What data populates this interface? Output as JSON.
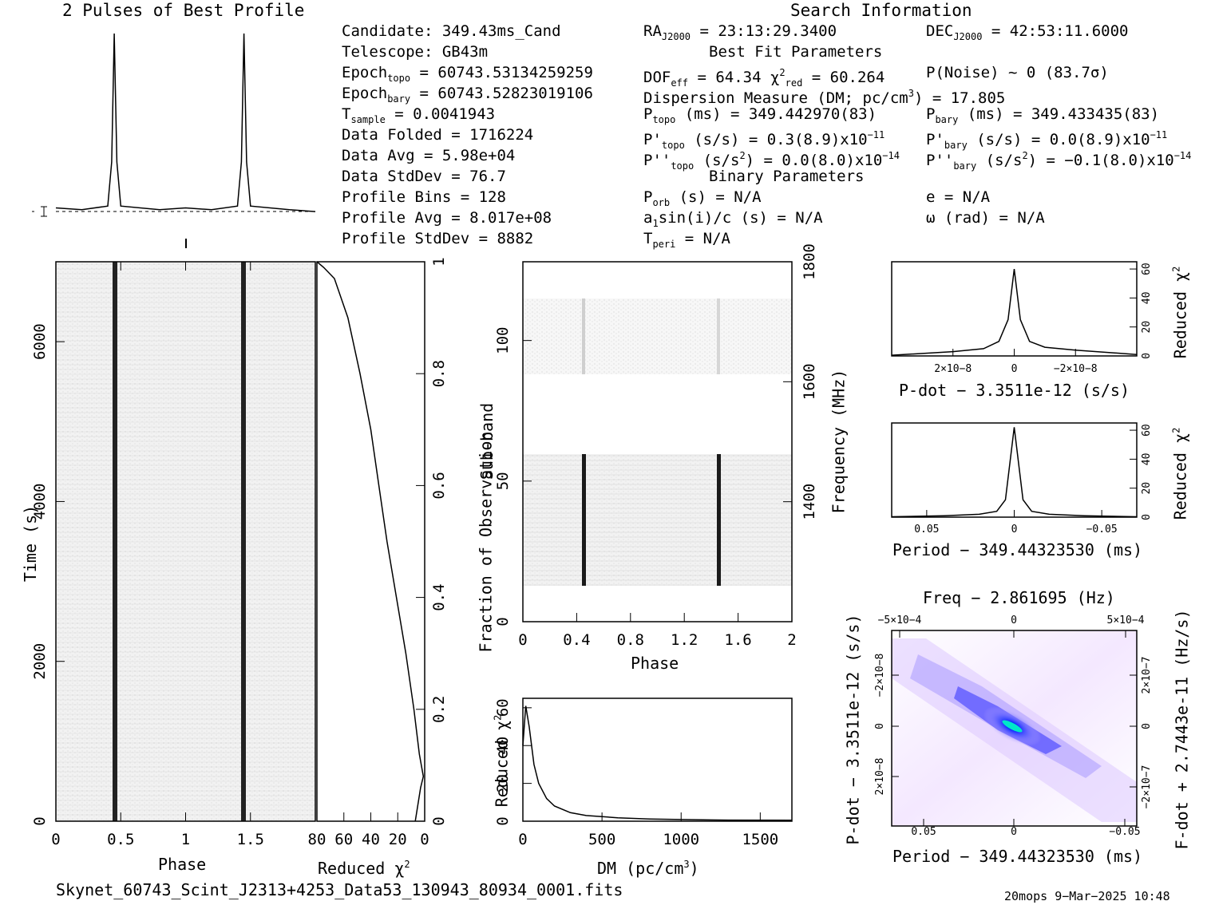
{
  "header": {
    "profile_title": "2 Pulses of Best Profile",
    "search_title": "Search Information",
    "best_fit_title": "Best Fit Parameters",
    "binary_title": "Binary Parameters"
  },
  "info": {
    "candidate": "Candidate:  349.43ms_Cand",
    "telescope": "Telescope:  GB43m",
    "epoch_topo": "Epoch",
    "epoch_topo_sub": "topo",
    "epoch_topo_val": " = 60743.53134259259",
    "epoch_bary": "Epoch",
    "epoch_bary_sub": "bary",
    "epoch_bary_val": " = 60743.52823019106",
    "tsample": "T",
    "tsample_sub": "sample",
    "tsample_val": "     =  0.0041943",
    "data_folded": "Data Folded    =  1716224",
    "data_avg": "Data Avg       =  5.98e+04",
    "data_std": "Data StdDev    =  76.7",
    "profile_bins": "Profile Bins   =  128",
    "profile_avg": "Profile Avg    =  8.017e+08",
    "profile_std": "Profile StdDev =  8882"
  },
  "search": {
    "ra": "RA",
    "ra_sub": "J2000",
    "ra_val": " = 23:13:29.3400",
    "dec": "DEC",
    "dec_sub": "J2000",
    "dec_val": " = 42:53:11.6000",
    "dof": "DOF",
    "dof_sub": "eff",
    "dof_val": " = 64.34  χ",
    "chi_sup": "2",
    "chi_sub": "red",
    "chi_val": " = 60.264",
    "pnoise": "P(Noise) ~ 0   (83.7σ)",
    "dm": "Dispersion Measure (DM; pc/cm",
    "dm_sup": "3",
    "dm_val": ") = 17.805",
    "ptopo": "P",
    "ptopo_sub": "topo",
    "ptopo_val": " (ms) =  349.442970(83)",
    "pbary": "P",
    "pbary_sub": "bary",
    "pbary_val": " (ms) =  349.433435(83)",
    "pdtopo": "P'",
    "pdtopo_sub": "topo",
    "pdtopo_val": " (s/s) =  0.3(8.9)x10",
    "pdtopo_exp": "−11",
    "pdbary": "P'",
    "pdbary_sub": "bary",
    "pdbary_val": " (s/s) = 0.0(8.9)x10",
    "pdbary_exp": "−11",
    "pddtopo": "P''",
    "pddtopo_sub": "topo",
    "pddtopo_val": " (s/s",
    "pddtopo_sup": "2",
    "pddtopo_val2": ") = 0.0(8.0)x10",
    "pddtopo_exp": "−14",
    "pddbary": "P''",
    "pddbary_sub": "bary",
    "pddbary_val": " (s/s",
    "pddbary_sup": "2",
    "pddbary_val2": ") = −0.1(8.0)x10",
    "pddbary_exp": "−14",
    "porb": "P",
    "porb_sub": "orb",
    "porb_val": " (s) = N/A",
    "ecc": "e = N/A",
    "a1": "a",
    "a1_sub": "1",
    "a1_val": "sin(i)/c (s) = N/A",
    "omega": "ω (rad) = N/A",
    "tperi": "T",
    "tperi_sub": "peri",
    "tperi_val": " = N/A"
  },
  "footer": {
    "filename": "Skynet_60743_Scint_J2313+4253_Data53_130943_80934_0001.fits",
    "stamp": "20mops  9−Mar−2025 10:48"
  },
  "chart_data": [
    {
      "type": "line",
      "title": "2 Pulses of Best Profile",
      "x": [
        0.0,
        0.2,
        0.4,
        0.43,
        0.45,
        0.47,
        0.5,
        0.8,
        1.0,
        1.2,
        1.4,
        1.43,
        1.45,
        1.47,
        1.5,
        1.8,
        2.0
      ],
      "y": [
        0.05,
        0.04,
        0.06,
        0.3,
        1.0,
        0.3,
        0.06,
        0.04,
        0.05,
        0.04,
        0.06,
        0.3,
        1.0,
        0.3,
        0.06,
        0.04,
        0.03
      ],
      "xlim": [
        0,
        2
      ]
    },
    {
      "type": "heatmap",
      "xlabel": "Phase",
      "ylabel": "Time (s)",
      "xlim": [
        0,
        2
      ],
      "ylim": [
        0,
        7000
      ],
      "x_ticks": [
        "0",
        "0.5",
        "1",
        "1.5"
      ],
      "y_ticks": [
        "0",
        "2000",
        "4000",
        "6000"
      ],
      "pulse_phases": [
        0.45,
        1.45
      ]
    },
    {
      "type": "line",
      "xlabel": "Reduced χ2",
      "ylabel": "Fraction of Observation",
      "x_ticks": [
        "80",
        "60",
        "40",
        "20",
        "0"
      ],
      "y_ticks": [
        "0",
        "0.2",
        "0.4",
        "0.6",
        "0.8",
        "1"
      ],
      "xlim": [
        80,
        0
      ],
      "ylim": [
        0,
        1
      ],
      "x": [
        80,
        75,
        67,
        57,
        48,
        40,
        34,
        28,
        21,
        14,
        8,
        4,
        1,
        3,
        7
      ],
      "y": [
        1.0,
        0.99,
        0.97,
        0.9,
        0.8,
        0.7,
        0.6,
        0.5,
        0.4,
        0.3,
        0.2,
        0.12,
        0.08,
        0.06,
        0.0
      ]
    },
    {
      "type": "heatmap",
      "xlabel": "Phase",
      "ylabel": "Sub-band",
      "y2label": "Frequency (MHz)",
      "xlim": [
        0,
        2
      ],
      "ylim": [
        0,
        128
      ],
      "x_ticks": [
        "0",
        "0.4",
        "0.8",
        "1.2",
        "1.6",
        "2"
      ],
      "y_ticks": [
        "0",
        "50",
        "100"
      ],
      "y2_ticks": [
        "1400",
        "1600",
        "1800"
      ],
      "pulse_phases": [
        0.45,
        1.45
      ],
      "data_bands": [
        [
          13,
          60
        ],
        [
          89,
          116
        ]
      ]
    },
    {
      "type": "line",
      "xlabel": "DM (pc/cm3)",
      "ylabel": "Reduced χ2",
      "xlim": [
        0,
        1700
      ],
      "ylim": [
        0,
        65
      ],
      "x_ticks": [
        "0",
        "500",
        "1000",
        "1500"
      ],
      "y_ticks": [
        "0",
        "20",
        "40",
        "60"
      ],
      "x": [
        0,
        18,
        40,
        70,
        100,
        150,
        200,
        300,
        400,
        600,
        800,
        1000,
        1300,
        1700
      ],
      "y": [
        40,
        61,
        50,
        30,
        20,
        12,
        8,
        4.5,
        3,
        1.8,
        1.2,
        0.9,
        0.6,
        0.5
      ]
    },
    {
      "type": "line",
      "xlabel": "P-dot − 3.3511e-12 (s/s)",
      "ylabel": "Reduced χ2",
      "xlim": [
        4e-08,
        -4e-08
      ],
      "ylim": [
        0,
        65
      ],
      "x_ticks": [
        "2×10−8",
        "0",
        "−2×10−8"
      ],
      "y_ticks": [
        "0",
        "20",
        "40",
        "60"
      ],
      "x": [
        4e-08,
        2e-08,
        1e-08,
        5e-09,
        2e-09,
        0,
        -2e-09,
        -5e-09,
        -1e-08,
        -2e-08,
        -4e-08
      ],
      "y": [
        0.5,
        3,
        5,
        10,
        25,
        60,
        25,
        10,
        6,
        4,
        1
      ]
    },
    {
      "type": "line",
      "xlabel": "Period − 349.44323530 (ms)",
      "ylabel": "Reduced χ2",
      "xlim": [
        0.07,
        -0.07
      ],
      "ylim": [
        0,
        65
      ],
      "x_ticks": [
        "0.05",
        "0",
        "−0.05"
      ],
      "y_ticks": [
        "0",
        "20",
        "40",
        "60"
      ],
      "x": [
        0.07,
        0.04,
        0.02,
        0.01,
        0.005,
        0,
        -0.005,
        -0.01,
        -0.02,
        -0.04,
        -0.07
      ],
      "y": [
        0.3,
        1,
        2,
        4,
        12,
        62,
        12,
        4,
        2,
        1,
        0.3
      ]
    },
    {
      "type": "heatmap",
      "title": "Freq − 2.861695 (Hz)",
      "xlabel": "Period − 349.44323530 (ms)",
      "ylabel": "P-dot − 3.3511e-12 (s/s)",
      "y2label": "F-dot + 2.7443e-11 (Hz/s)",
      "x_ticks": [
        "0.05",
        "0",
        "−0.05"
      ],
      "x2_ticks": [
        "−5×10−4",
        "0",
        "5×10−4"
      ],
      "y_ticks": [
        "−2×10−8",
        "0",
        "2×10−8"
      ],
      "y2_ticks": [
        "2×10−7",
        "0",
        "−2×10−7"
      ]
    }
  ]
}
